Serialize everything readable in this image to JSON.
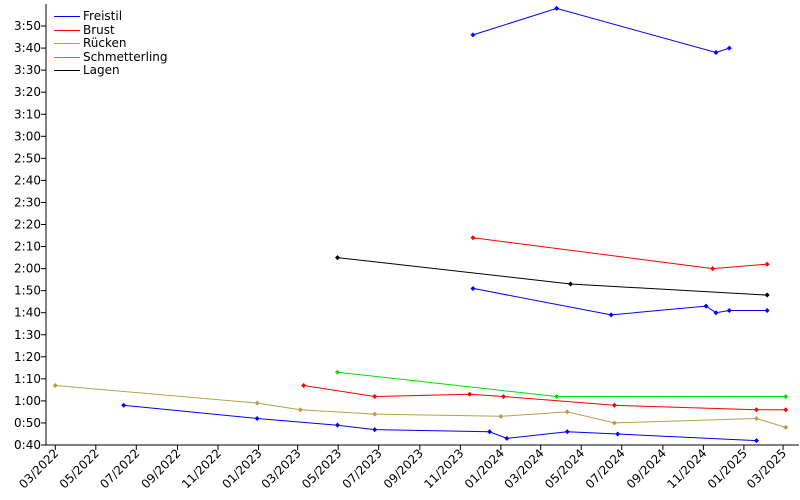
{
  "chart_data": {
    "type": "line",
    "title": "",
    "xlabel": "",
    "ylabel": "",
    "x_ticks": [
      "03/2022",
      "05/2022",
      "07/2022",
      "09/2022",
      "11/2022",
      "01/2023",
      "03/2023",
      "05/2023",
      "07/2023",
      "09/2023",
      "11/2023",
      "01/2024",
      "03/2024",
      "05/2024",
      "07/2024",
      "09/2024",
      "11/2024",
      "01/2025",
      "03/2025"
    ],
    "y_ticks": [
      "0:40",
      "0:50",
      "1:00",
      "1:10",
      "1:20",
      "1:30",
      "1:40",
      "1:50",
      "2:00",
      "2:10",
      "2:20",
      "2:30",
      "2:40",
      "2:50",
      "3:00",
      "3:10",
      "3:20",
      "3:30",
      "3:40",
      "3:50"
    ],
    "xlim": [
      "2022-02-15",
      "2025-03-25"
    ],
    "ylim": [
      40,
      240
    ],
    "legend_position": "top-left",
    "grid": false,
    "series": [
      {
        "name": "Freistil",
        "color": "#0000ff",
        "segments": [
          [
            [
              "2022-06-12",
              58
            ],
            [
              "2022-12-30",
              52
            ],
            [
              "2023-04-30",
              49
            ],
            [
              "2023-06-25",
              47
            ],
            [
              "2023-12-15",
              46
            ],
            [
              "2024-01-10",
              43
            ],
            [
              "2024-04-10",
              46
            ],
            [
              "2024-06-25",
              45
            ],
            [
              "2025-01-20",
              42
            ]
          ],
          [
            [
              "2023-11-20",
              111
            ],
            [
              "2024-06-15",
              99
            ],
            [
              "2024-11-05",
              103
            ],
            [
              "2024-11-20",
              100
            ],
            [
              "2024-12-10",
              101
            ],
            [
              "2025-02-05",
              101
            ]
          ],
          [
            [
              "2023-11-20",
              226
            ],
            [
              "2024-03-25",
              238
            ],
            [
              "2024-11-20",
              218
            ],
            [
              "2024-12-10",
              220
            ]
          ]
        ]
      },
      {
        "name": "Brust",
        "color": "#ff0000",
        "segments": [
          [
            [
              "2023-03-10",
              67
            ],
            [
              "2023-06-25",
              62
            ],
            [
              "2023-11-15",
              63
            ],
            [
              "2024-01-05",
              62
            ],
            [
              "2024-06-20",
              58
            ],
            [
              "2025-01-20",
              56
            ],
            [
              "2025-03-05",
              56
            ]
          ],
          [
            [
              "2023-11-20",
              134
            ],
            [
              "2024-11-15",
              120
            ],
            [
              "2025-02-05",
              122
            ]
          ]
        ]
      },
      {
        "name": "Rücken",
        "color": "#b5a04a",
        "segments": [
          [
            [
              "2022-03-01",
              67
            ],
            [
              "2022-12-30",
              59
            ],
            [
              "2023-03-05",
              56
            ],
            [
              "2023-06-25",
              54
            ],
            [
              "2024-01-01",
              53
            ],
            [
              "2024-04-10",
              55
            ],
            [
              "2024-06-20",
              50
            ],
            [
              "2025-01-20",
              52
            ],
            [
              "2025-03-05",
              48
            ]
          ]
        ]
      },
      {
        "name": "Schmetterling",
        "color": "#00e000",
        "segments": [
          [
            [
              "2023-04-30",
              73
            ],
            [
              "2024-03-25",
              62
            ],
            [
              "2025-03-05",
              62
            ]
          ]
        ]
      },
      {
        "name": "Lagen",
        "color": "#000000",
        "segments": [
          [
            [
              "2023-04-30",
              125
            ],
            [
              "2024-04-15",
              113
            ],
            [
              "2025-02-05",
              108
            ]
          ]
        ]
      }
    ]
  }
}
